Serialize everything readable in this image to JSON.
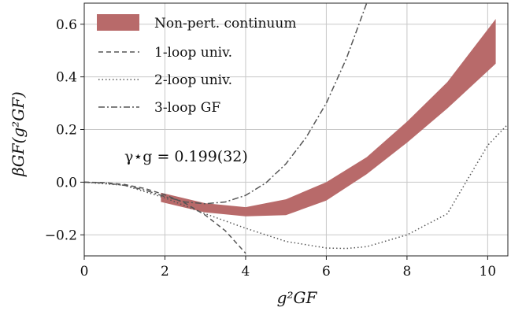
{
  "chart_data": {
    "type": "line",
    "xlabel": "g²GF",
    "ylabel": "βGF(g²GF)",
    "xlim": [
      0,
      10.5
    ],
    "ylim": [
      -0.28,
      0.68
    ],
    "grid": true,
    "legend_position": "top-left",
    "xticks": [
      "0",
      "2",
      "4",
      "6",
      "8",
      "10"
    ],
    "yticks": [
      "−0.2",
      "0.0",
      "0.2",
      "0.4",
      "0.6"
    ],
    "annotation": "γ⋆g = 0.199(32)",
    "colors": {
      "band": "#b86a6a",
      "one_loop": "#555555",
      "two_loop": "#555555",
      "three_loop": "#555555",
      "grid": "#c8c8c8"
    },
    "series": [
      {
        "name": "Non-pert. continuum",
        "style": "band",
        "x": [
          1.9,
          3,
          4,
          5,
          6,
          7,
          8,
          9,
          10.2
        ],
        "lower": [
          -0.075,
          -0.115,
          -0.13,
          -0.125,
          -0.07,
          0.03,
          0.15,
          0.28,
          0.45
        ],
        "upper": [
          -0.04,
          -0.08,
          -0.095,
          -0.065,
          0.0,
          0.095,
          0.23,
          0.38,
          0.62
        ]
      },
      {
        "name": "1-loop univ.",
        "style": "dashed",
        "x": [
          0,
          0.5,
          1,
          1.5,
          2,
          2.5,
          3,
          3.5,
          4
        ],
        "y": [
          0,
          -0.002,
          -0.009,
          -0.024,
          -0.048,
          -0.08,
          -0.125,
          -0.185,
          -0.27
        ]
      },
      {
        "name": "2-loop univ.",
        "style": "dotted",
        "x": [
          0,
          1,
          2,
          3,
          4,
          5,
          6,
          6.5,
          7,
          8,
          9,
          10,
          10.5
        ],
        "y": [
          0,
          -0.012,
          -0.06,
          -0.12,
          -0.175,
          -0.225,
          -0.25,
          -0.252,
          -0.245,
          -0.2,
          -0.12,
          0.14,
          0.22
        ]
      },
      {
        "name": "3-loop GF",
        "style": "dashdot",
        "x": [
          0,
          0.5,
          1,
          1.5,
          2,
          2.5,
          3,
          3.5,
          4,
          4.5,
          5,
          5.5,
          6,
          6.5,
          7
        ],
        "y": [
          0,
          -0.003,
          -0.012,
          -0.03,
          -0.055,
          -0.075,
          -0.082,
          -0.075,
          -0.05,
          -0.003,
          0.07,
          0.17,
          0.3,
          0.47,
          0.68
        ]
      }
    ]
  }
}
